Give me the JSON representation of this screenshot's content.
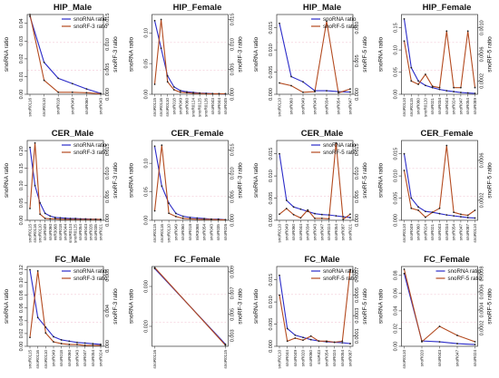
{
  "labels": {
    "left_axis": "snoRNA ratio",
    "legend_snorna": "snoRNA ratio"
  },
  "colors": {
    "snorna": "#2b2bc8",
    "snorf": "#b34a1f",
    "point": "#222222",
    "axis": "#333333",
    "grid_pink": "#f2c8d6"
  },
  "chart_data": [
    {
      "type": "line",
      "title": "HIP_Male",
      "legend": true,
      "right_label": "snoRF-3 ratio",
      "categories": [
        "snoR0116",
        "snoR0110",
        "snoR018",
        "snoR049",
        "snoR060",
        "snoR043"
      ],
      "left_ticks": [
        "0.00",
        "0.01",
        "0.02",
        "0.03",
        "0.04"
      ],
      "left_lim": [
        0,
        0.045
      ],
      "right_ticks": [
        "0.000",
        "0.005",
        "0.010",
        "0.015"
      ],
      "right_lim": [
        0,
        0.016
      ],
      "snorna": [
        0.044,
        0.018,
        0.009,
        0.006,
        0.003,
        0.0005
      ],
      "snorf": [
        0.016,
        0.0028,
        0.0004,
        0.0004,
        0.0003,
        0.0001
      ]
    },
    {
      "type": "line",
      "title": "HIP_Female",
      "legend": false,
      "right_label": "snoRF-3 ratio",
      "categories": [
        "snoR0115",
        "snoR0116",
        "snoR0110",
        "snoR018",
        "snoR049",
        "snoR060",
        "snoR0124",
        "snoR0125",
        "snoR0126",
        "snoR043",
        "snoR044",
        "snoR045"
      ],
      "left_ticks": [
        "0.00",
        "0.05",
        "0.10"
      ],
      "left_lim": [
        0,
        0.13
      ],
      "right_ticks": [
        "0.000",
        "0.005",
        "0.010",
        "0.015"
      ],
      "right_lim": [
        0,
        0.016
      ],
      "snorna": [
        0.12,
        0.075,
        0.03,
        0.012,
        0.006,
        0.004,
        0.003,
        0.002,
        0.0015,
        0.001,
        0.0008,
        0.0005
      ],
      "snorf": [
        0.002,
        0.015,
        0.0025,
        0.0009,
        0.0004,
        0.0003,
        0.0002,
        0.0002,
        0.0001,
        0.0001,
        0.0001,
        0.0001
      ]
    },
    {
      "type": "line",
      "title": "HIP_Male",
      "legend": true,
      "right_label": "snoRF-5 ratio",
      "categories": [
        "snoR0110",
        "snoR060",
        "snoR049",
        "snoR043",
        "snoR034",
        "snoR054",
        "snoR047"
      ],
      "left_ticks": [
        "0.000",
        "0.005",
        "0.010",
        "0.015"
      ],
      "left_lim": [
        0,
        0.018
      ],
      "right_ticks": [
        "0.000",
        "0.005",
        "0.010"
      ],
      "right_lim": [
        0,
        0.012
      ],
      "snorna": [
        0.016,
        0.004,
        0.0028,
        0.0008,
        0.0008,
        0.0006,
        0.0005
      ],
      "snorf": [
        0.0017,
        0.0013,
        0.0003,
        0.0004,
        0.011,
        0.0002,
        0.0008
      ]
    },
    {
      "type": "line",
      "title": "HIP_Female",
      "legend": false,
      "right_label": "snoRF-5 ratio",
      "categories": [
        "snoR0110",
        "snoR0115",
        "snoR060",
        "snoR0120",
        "snoR021",
        "snoR034",
        "snoR043",
        "snoR024",
        "snoR047",
        "snoR054",
        "snoR089"
      ],
      "left_ticks": [
        "0.00",
        "0.05",
        "0.10",
        "0.15"
      ],
      "left_lim": [
        0,
        0.18
      ],
      "right_ticks": [
        "0.0002",
        "0.0006",
        "0.0010"
      ],
      "right_lim": [
        0,
        0.0012
      ],
      "snorna": [
        0.17,
        0.06,
        0.03,
        0.02,
        0.015,
        0.011,
        0.008,
        0.006,
        0.004,
        0.003,
        0.002
      ],
      "snorf": [
        0.0008,
        0.0002,
        0.00015,
        0.0003,
        0.00012,
        0.0001,
        0.00095,
        0.0001,
        0.0001,
        0.00095,
        0.0001
      ]
    },
    {
      "type": "line",
      "title": "CER_Male",
      "legend": true,
      "right_label": "snoRF-3 ratio",
      "categories": [
        "snoR0115",
        "snoR0116",
        "snoR0110",
        "snoR049",
        "snoR060",
        "miR3068",
        "snoR018",
        "snoR044",
        "snoR0124",
        "snoR0125",
        "snoR054",
        "snoR043",
        "snoR026",
        "snoR035",
        "snoR021"
      ],
      "left_ticks": [
        "0.00",
        "0.05",
        "0.10",
        "0.15",
        "0.20"
      ],
      "left_lim": [
        0,
        0.23
      ],
      "right_ticks": [
        "0.000",
        "0.005",
        "0.010",
        "0.015"
      ],
      "right_lim": [
        0,
        0.017
      ],
      "snorna": [
        0.21,
        0.1,
        0.05,
        0.02,
        0.012,
        0.008,
        0.007,
        0.006,
        0.005,
        0.005,
        0.004,
        0.004,
        0.003,
        0.003,
        0.002
      ],
      "snorf": [
        0.0025,
        0.0165,
        0.0013,
        0.0004,
        0.0003,
        0.0003,
        0.0002,
        0.0002,
        0.0002,
        0.0002,
        0.0002,
        0.0002,
        0.0002,
        0.0002,
        0.0002
      ]
    },
    {
      "type": "line",
      "title": "CER_Female",
      "legend": false,
      "right_label": "snoRF-3 ratio",
      "categories": [
        "snoR0115",
        "snoR0116",
        "snoR0110",
        "snoR049",
        "snoR060",
        "snoR018",
        "miR3068",
        "snoR054",
        "snoR043",
        "snoR035",
        "snoR026"
      ],
      "left_ticks": [
        "0.00",
        "0.05",
        "0.10"
      ],
      "left_lim": [
        0,
        0.14
      ],
      "right_ticks": [
        "0.000",
        "0.005",
        "0.010",
        "0.015"
      ],
      "right_lim": [
        0,
        0.017
      ],
      "snorna": [
        0.13,
        0.06,
        0.03,
        0.012,
        0.007,
        0.005,
        0.004,
        0.003,
        0.002,
        0.002,
        0.001
      ],
      "snorf": [
        0.002,
        0.016,
        0.0015,
        0.0008,
        0.0004,
        0.0003,
        0.0002,
        0.0002,
        0.0002,
        0.0001,
        0.0001
      ]
    },
    {
      "type": "line",
      "title": "CER_Male",
      "legend": true,
      "right_label": "snoRF-5 ratio",
      "categories": [
        "snoR0110",
        "snoR049",
        "snoR060",
        "snoR044",
        "snoR034",
        "snoR043",
        "snoR047",
        "snoR024",
        "snoR054",
        "snoR087",
        "snoR021"
      ],
      "left_ticks": [
        "0.000",
        "0.005",
        "0.010",
        "0.015"
      ],
      "left_lim": [
        0,
        0.018
      ],
      "right_ticks": [
        "0.000",
        "0.005",
        "0.010",
        "0.015"
      ],
      "right_lim": [
        0,
        0.017
      ],
      "snorna": [
        0.015,
        0.0045,
        0.003,
        0.0025,
        0.002,
        0.0015,
        0.0013,
        0.0012,
        0.001,
        0.0008,
        0.0006
      ],
      "snorf": [
        0.0013,
        0.0025,
        0.0012,
        0.0005,
        0.0022,
        0.0004,
        0.0004,
        0.0003,
        0.0165,
        0.0002,
        0.0013
      ]
    },
    {
      "type": "line",
      "title": "CER_Female",
      "legend": false,
      "right_label": "snoRF-5 ratio",
      "categories": [
        "snoR0110",
        "snoR049",
        "snoR060",
        "snoR024",
        "snoR021",
        "snoR043",
        "snoR034",
        "snoR054",
        "snoR047",
        "snoR087",
        "snoR0110"
      ],
      "left_ticks": [
        "0.000",
        "0.005",
        "0.010",
        "0.015"
      ],
      "left_lim": [
        0,
        0.018
      ],
      "right_ticks": [
        "0.0002",
        "0.0006"
      ],
      "right_lim": [
        0,
        0.0008
      ],
      "snorna": [
        0.015,
        0.005,
        0.003,
        0.002,
        0.0018,
        0.0015,
        0.0012,
        0.001,
        0.0008,
        0.0006,
        0.0005
      ],
      "snorf": [
        0.0005,
        0.00012,
        0.0001,
        3e-05,
        8e-05,
        0.00012,
        0.00075,
        8e-05,
        6e-05,
        5e-05,
        0.0001
      ]
    },
    {
      "type": "line",
      "title": "FC_Male",
      "legend": true,
      "right_label": "snoRF-3 ratio",
      "categories": [
        "snoR0115",
        "snoR0116",
        "snoR0110",
        "snoR049",
        "snoR018",
        "snoR060",
        "snoR043",
        "snoR047",
        "snoR054",
        "snoR024"
      ],
      "left_ticks": [
        "0.00",
        "0.02",
        "0.04",
        "0.06",
        "0.08",
        "0.10",
        "0.12"
      ],
      "left_lim": [
        0,
        0.125
      ],
      "right_ticks": [
        "0.000",
        "0.004",
        "0.008"
      ],
      "right_lim": [
        0,
        0.009
      ],
      "snorna": [
        0.12,
        0.045,
        0.03,
        0.015,
        0.01,
        0.008,
        0.006,
        0.005,
        0.004,
        0.003
      ],
      "snorf": [
        0.001,
        0.0085,
        0.0015,
        0.0005,
        0.0003,
        0.0002,
        0.0002,
        0.0001,
        0.0001,
        0.0001
      ],
      "left_label_override": "snoRNA ratio"
    },
    {
      "type": "line",
      "title": "FC_Female",
      "legend": false,
      "right_label": "snoRF-3 ratio",
      "categories": [
        "snoR0116",
        "snoR0115"
      ],
      "left_ticks": [
        "0.020",
        "0.030"
      ],
      "left_lim": [
        0.015,
        0.035
      ],
      "right_ticks": [
        "0.003",
        "0.005",
        "0.007",
        "0.009"
      ],
      "right_lim": [
        0.002,
        0.0095
      ],
      "snorna": [
        0.0345,
        0.0155
      ],
      "snorf": [
        0.0094,
        0.0021
      ]
    },
    {
      "type": "line",
      "title": "FC_Male",
      "legend": true,
      "right_label": "snoRF-5 ratio",
      "categories": [
        "snoR0110",
        "snoR044",
        "snoR049",
        "snoR020",
        "snoR060",
        "snoR43",
        "snoR054",
        "snoR024",
        "snoR054",
        "snoR087"
      ],
      "left_ticks": [
        "0.000",
        "0.005",
        "0.010",
        "0.015"
      ],
      "left_lim": [
        0,
        0.018
      ],
      "right_ticks": [
        "0.0001",
        "0.0003",
        "0.0005",
        "0.0007"
      ],
      "right_lim": [
        0,
        0.00078
      ],
      "snorna": [
        0.016,
        0.004,
        0.0025,
        0.002,
        0.0015,
        0.0012,
        0.001,
        0.0009,
        0.0008,
        0.0006
      ],
      "snorf": [
        0.0005,
        5e-05,
        8e-05,
        6e-05,
        0.0001,
        5e-05,
        5e-05,
        4e-05,
        5e-05,
        0.00075
      ]
    },
    {
      "type": "line",
      "title": "FC_Female",
      "legend": true,
      "right_label": "snoRF-5 ratio",
      "categories": [
        "snoR0110",
        "snoR020",
        "snoR043",
        "snoR047",
        "snoR024"
      ],
      "left_ticks": [
        "0.00",
        "0.02",
        "0.04",
        "0.06",
        "0.08"
      ],
      "left_lim": [
        0,
        0.09
      ],
      "right_ticks": [
        "0.0002",
        "0.0004",
        "0.0006",
        "0.0008"
      ],
      "right_lim": [
        0,
        0.00088
      ],
      "snorna": [
        0.082,
        0.006,
        0.005,
        0.003,
        0.002
      ],
      "snorf": [
        0.00085,
        5e-05,
        0.00022,
        0.00012,
        5e-05
      ]
    }
  ]
}
